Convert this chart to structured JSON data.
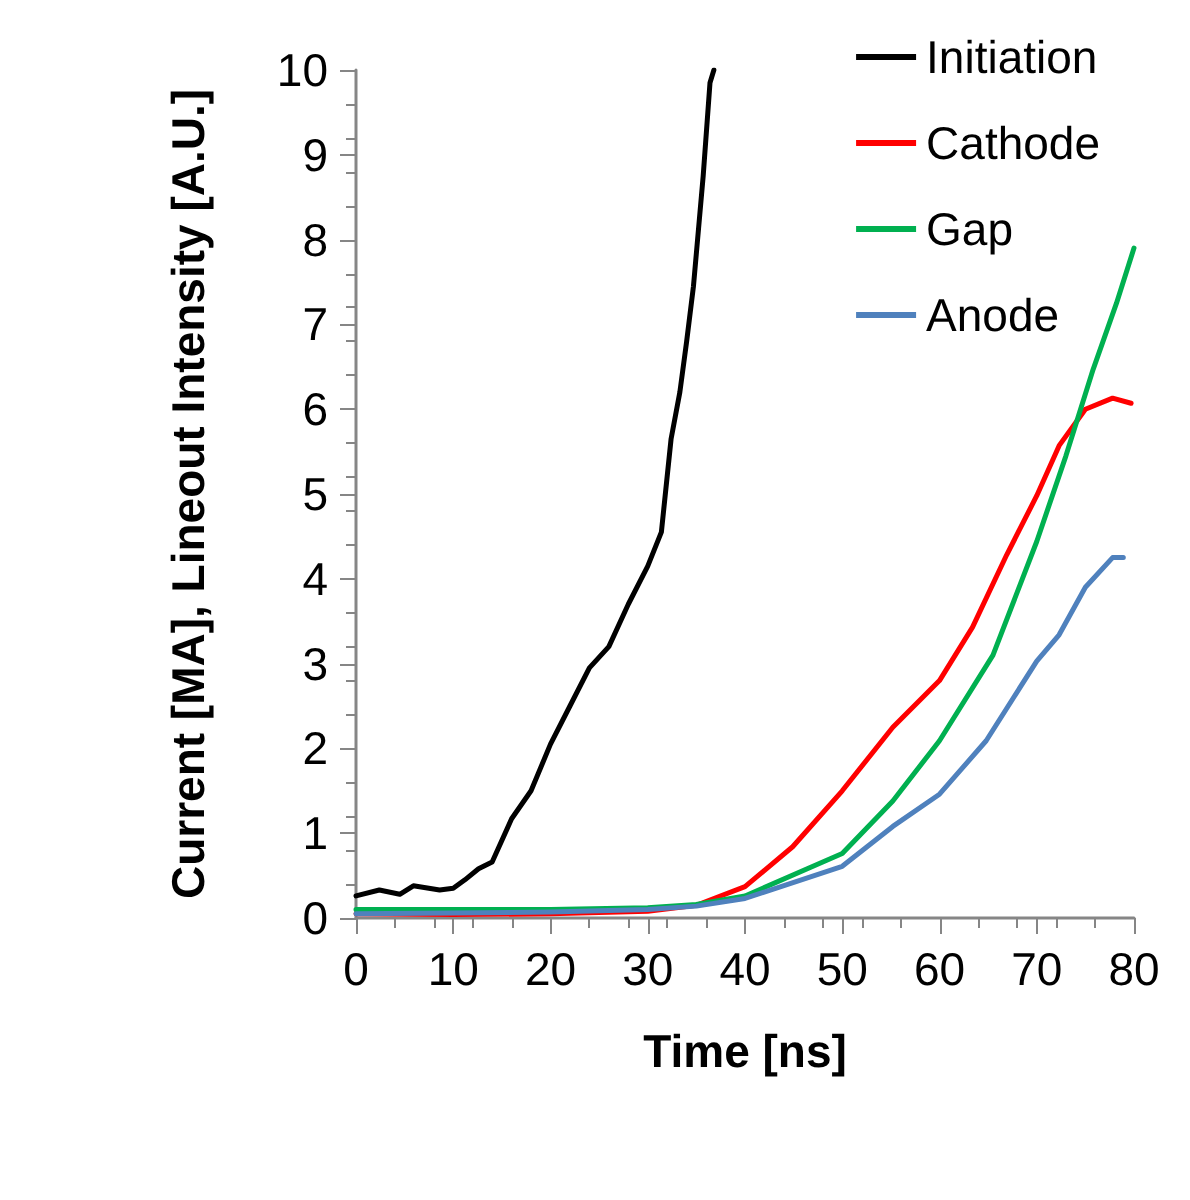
{
  "chart_data": {
    "type": "line",
    "xlabel": "Time [ns]",
    "ylabel": "Current [MA], Lineout Intensity [A.U.]",
    "xlim": [
      0,
      80
    ],
    "xticks": [
      0,
      10,
      20,
      30,
      40,
      50,
      60,
      70,
      80
    ],
    "ylim": [
      0,
      10
    ],
    "yticks": [
      0,
      1,
      2,
      3,
      4,
      5,
      6,
      7,
      8,
      9,
      10
    ],
    "grid": false,
    "legend": "top right",
    "marker": "none",
    "line_style": "solid",
    "series": [
      {
        "name": "Initiation",
        "color": "#000000",
        "x": [
          0,
          2.4,
          4.5,
          5.9,
          8.6,
          10,
          11.2,
          12.6,
          14,
          16,
          18,
          20,
          22,
          24,
          26,
          28,
          30,
          31.4,
          32.4,
          33.3,
          34,
          34.7,
          35.7,
          36.4,
          36.8
        ],
        "values": [
          0.26,
          0.33,
          0.28,
          0.38,
          0.33,
          0.35,
          0.45,
          0.58,
          0.66,
          1.17,
          1.5,
          2.05,
          2.5,
          2.95,
          3.2,
          3.7,
          4.15,
          4.55,
          5.65,
          6.2,
          6.8,
          7.45,
          8.75,
          9.85,
          10
        ]
      },
      {
        "name": "Cathode",
        "color": "#ff0000",
        "x": [
          0,
          10,
          20,
          30,
          35,
          40,
          44.9,
          50,
          55.2,
          60,
          63.4,
          66.9,
          70,
          72.3,
          75,
          77.8,
          79.7
        ],
        "values": [
          0.05,
          0.04,
          0.05,
          0.08,
          0.15,
          0.37,
          0.84,
          1.5,
          2.25,
          2.8,
          3.43,
          4.28,
          4.98,
          5.57,
          6,
          6.13,
          6.07
        ]
      },
      {
        "name": "Gap",
        "color": "#00b050",
        "x": [
          0,
          10,
          20,
          30,
          35,
          40,
          50,
          55.2,
          60,
          65.5,
          70,
          73,
          75.8,
          78.2,
          80
        ],
        "values": [
          0.1,
          0.1,
          0.1,
          0.12,
          0.16,
          0.26,
          0.76,
          1.38,
          2.09,
          3.1,
          4.44,
          5.45,
          6.47,
          7.25,
          7.9
        ]
      },
      {
        "name": "Anode",
        "color": "#4f81bd",
        "x": [
          0,
          10,
          20,
          30,
          35,
          40,
          50,
          55.2,
          60,
          64.8,
          70,
          72.3,
          75,
          77.8,
          78.9
        ],
        "values": [
          0.05,
          0.06,
          0.07,
          0.1,
          0.14,
          0.23,
          0.61,
          1.08,
          1.46,
          2.09,
          3.03,
          3.34,
          3.9,
          4.25,
          4.25
        ]
      }
    ]
  }
}
